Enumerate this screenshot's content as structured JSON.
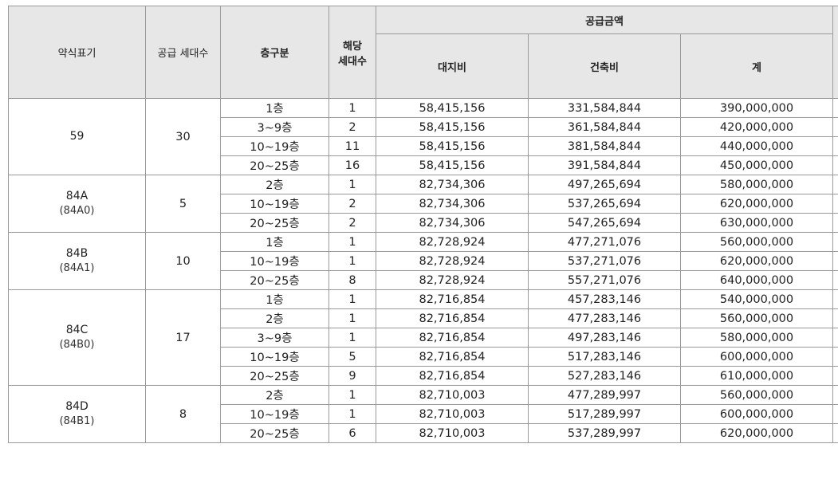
{
  "headers": {
    "type": "약식표기",
    "supply_units": "공급 세대수",
    "floor_group": "층구분",
    "units_line1": "해당",
    "units_line2": "세대수",
    "supply_price": "공급금액",
    "land_cost": "대지비",
    "building_cost": "건축비",
    "total": "계"
  },
  "groups": [
    {
      "type": "59",
      "subtype": "",
      "supply_units": "30",
      "rows": [
        {
          "floor": "1층",
          "units": "1",
          "land": "58,415,156",
          "building": "331,584,844",
          "total": "390,000,000"
        },
        {
          "floor": "3~9층",
          "units": "2",
          "land": "58,415,156",
          "building": "361,584,844",
          "total": "420,000,000"
        },
        {
          "floor": "10~19층",
          "units": "11",
          "land": "58,415,156",
          "building": "381,584,844",
          "total": "440,000,000"
        },
        {
          "floor": "20~25층",
          "units": "16",
          "land": "58,415,156",
          "building": "391,584,844",
          "total": "450,000,000"
        }
      ]
    },
    {
      "type": "84A",
      "subtype": "(84A0)",
      "supply_units": "5",
      "rows": [
        {
          "floor": "2층",
          "units": "1",
          "land": "82,734,306",
          "building": "497,265,694",
          "total": "580,000,000"
        },
        {
          "floor": "10~19층",
          "units": "2",
          "land": "82,734,306",
          "building": "537,265,694",
          "total": "620,000,000"
        },
        {
          "floor": "20~25층",
          "units": "2",
          "land": "82,734,306",
          "building": "547,265,694",
          "total": "630,000,000"
        }
      ]
    },
    {
      "type": "84B",
      "subtype": "(84A1)",
      "supply_units": "10",
      "rows": [
        {
          "floor": "1층",
          "units": "1",
          "land": "82,728,924",
          "building": "477,271,076",
          "total": "560,000,000"
        },
        {
          "floor": "10~19층",
          "units": "1",
          "land": "82,728,924",
          "building": "537,271,076",
          "total": "620,000,000"
        },
        {
          "floor": "20~25층",
          "units": "8",
          "land": "82,728,924",
          "building": "557,271,076",
          "total": "640,000,000"
        }
      ]
    },
    {
      "type": "84C",
      "subtype": "(84B0)",
      "supply_units": "17",
      "rows": [
        {
          "floor": "1층",
          "units": "1",
          "land": "82,716,854",
          "building": "457,283,146",
          "total": "540,000,000"
        },
        {
          "floor": "2층",
          "units": "1",
          "land": "82,716,854",
          "building": "477,283,146",
          "total": "560,000,000"
        },
        {
          "floor": "3~9층",
          "units": "1",
          "land": "82,716,854",
          "building": "497,283,146",
          "total": "580,000,000"
        },
        {
          "floor": "10~19층",
          "units": "5",
          "land": "82,716,854",
          "building": "517,283,146",
          "total": "600,000,000"
        },
        {
          "floor": "20~25층",
          "units": "9",
          "land": "82,716,854",
          "building": "527,283,146",
          "total": "610,000,000"
        }
      ]
    },
    {
      "type": "84D",
      "subtype": "(84B1)",
      "supply_units": "8",
      "rows": [
        {
          "floor": "2층",
          "units": "1",
          "land": "82,710,003",
          "building": "477,289,997",
          "total": "560,000,000"
        },
        {
          "floor": "10~19층",
          "units": "1",
          "land": "82,710,003",
          "building": "517,289,997",
          "total": "600,000,000"
        },
        {
          "floor": "20~25층",
          "units": "6",
          "land": "82,710,003",
          "building": "537,289,997",
          "total": "620,000,000"
        }
      ]
    }
  ]
}
